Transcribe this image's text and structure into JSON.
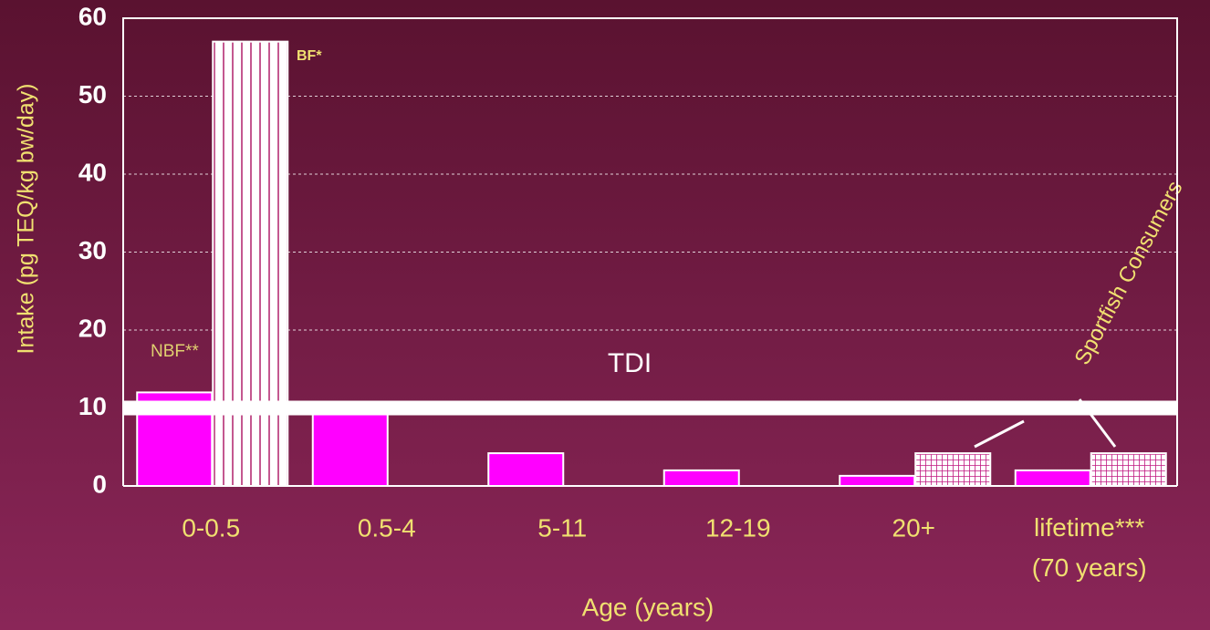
{
  "chart_data": {
    "type": "bar",
    "y_label": "Intake (pg TEQ/kg bw/day)",
    "x_label": "Age (years)",
    "categories": [
      "0-0.5",
      "0.5-4",
      "5-11",
      "12-19",
      "20+",
      "lifetime***\n(70 years)"
    ],
    "series": [
      {
        "name": "NBF**",
        "color": "#ff00ff",
        "values": [
          12,
          10,
          4.2,
          2,
          1.3,
          2
        ]
      },
      {
        "name": "BF*",
        "color": "#ffffff",
        "pattern": "vertical-stripes",
        "values": [
          57,
          null,
          null,
          null,
          null,
          null
        ]
      },
      {
        "name": "Sportfish Consumers",
        "color": "#ffffff",
        "pattern": "grid",
        "values": [
          null,
          null,
          null,
          null,
          4.2,
          4.2
        ]
      }
    ],
    "reference_line": {
      "label": "TDI",
      "value": 10
    },
    "ylim": [
      0,
      60
    ],
    "yticks": [
      0,
      10,
      20,
      30,
      40,
      50,
      60
    ],
    "grid": true
  }
}
